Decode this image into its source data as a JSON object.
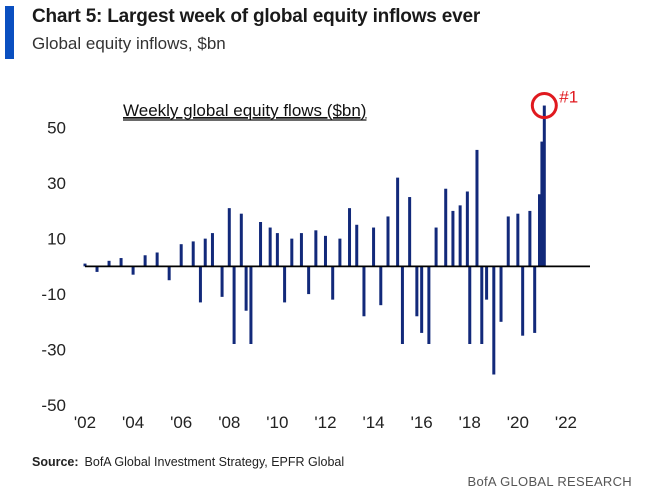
{
  "header": {
    "title": "Chart 5: Largest week of global equity inflows ever",
    "subtitle": "Global equity inflows, $bn"
  },
  "footer": {
    "source_label": "Source:",
    "source_text": "BofA Global Investment Strategy, EPFR Global",
    "brand": "BofA GLOBAL RESEARCH"
  },
  "colors": {
    "bars": "#12297a",
    "accent": "#0a4fc0",
    "highlight": "#e0191f"
  },
  "chart_data": {
    "type": "bar",
    "title": "Weekly global equity flows ($bn)",
    "xlabel": "",
    "ylabel": "",
    "xlim": [
      2002,
      2023
    ],
    "ylim": [
      -50,
      60
    ],
    "yticks": [
      50,
      30,
      10,
      -10,
      -30,
      -50
    ],
    "xticks": [
      "'02",
      "'04",
      "'06",
      "'08",
      "'10",
      "'12",
      "'14",
      "'16",
      "'18",
      "'20",
      "'22"
    ],
    "highlight": {
      "label": "#1",
      "x": 2021.1,
      "y": 58
    },
    "series": [
      {
        "values": [
          [
            2002.0,
            1
          ],
          [
            2002.5,
            -2
          ],
          [
            2003.0,
            2
          ],
          [
            2003.5,
            3
          ],
          [
            2004.0,
            -3
          ],
          [
            2004.5,
            4
          ],
          [
            2005.0,
            5
          ],
          [
            2005.5,
            -5
          ],
          [
            2006.0,
            8
          ],
          [
            2006.5,
            9
          ],
          [
            2006.8,
            -13
          ],
          [
            2007.0,
            10
          ],
          [
            2007.3,
            12
          ],
          [
            2007.7,
            -11
          ],
          [
            2008.0,
            21
          ],
          [
            2008.2,
            -28
          ],
          [
            2008.5,
            19
          ],
          [
            2008.7,
            -16
          ],
          [
            2008.9,
            -28
          ],
          [
            2009.3,
            16
          ],
          [
            2009.7,
            14
          ],
          [
            2010.0,
            12
          ],
          [
            2010.3,
            -13
          ],
          [
            2010.6,
            10
          ],
          [
            2011.0,
            12
          ],
          [
            2011.3,
            -10
          ],
          [
            2011.6,
            13
          ],
          [
            2012.0,
            11
          ],
          [
            2012.3,
            -12
          ],
          [
            2012.6,
            10
          ],
          [
            2013.0,
            21
          ],
          [
            2013.3,
            15
          ],
          [
            2013.6,
            -18
          ],
          [
            2014.0,
            14
          ],
          [
            2014.3,
            -14
          ],
          [
            2014.6,
            18
          ],
          [
            2015.0,
            32
          ],
          [
            2015.2,
            -28
          ],
          [
            2015.5,
            25
          ],
          [
            2015.8,
            -18
          ],
          [
            2016.0,
            -24
          ],
          [
            2016.3,
            -28
          ],
          [
            2016.6,
            14
          ],
          [
            2017.0,
            28
          ],
          [
            2017.3,
            20
          ],
          [
            2017.6,
            22
          ],
          [
            2017.9,
            27
          ],
          [
            2018.0,
            -28
          ],
          [
            2018.3,
            42
          ],
          [
            2018.5,
            -28
          ],
          [
            2018.7,
            -12
          ],
          [
            2019.0,
            -39
          ],
          [
            2019.3,
            -20
          ],
          [
            2019.6,
            18
          ],
          [
            2020.0,
            19
          ],
          [
            2020.2,
            -25
          ],
          [
            2020.5,
            20
          ],
          [
            2020.7,
            -24
          ],
          [
            2020.9,
            26
          ],
          [
            2021.0,
            45
          ],
          [
            2021.1,
            58
          ]
        ]
      }
    ]
  }
}
